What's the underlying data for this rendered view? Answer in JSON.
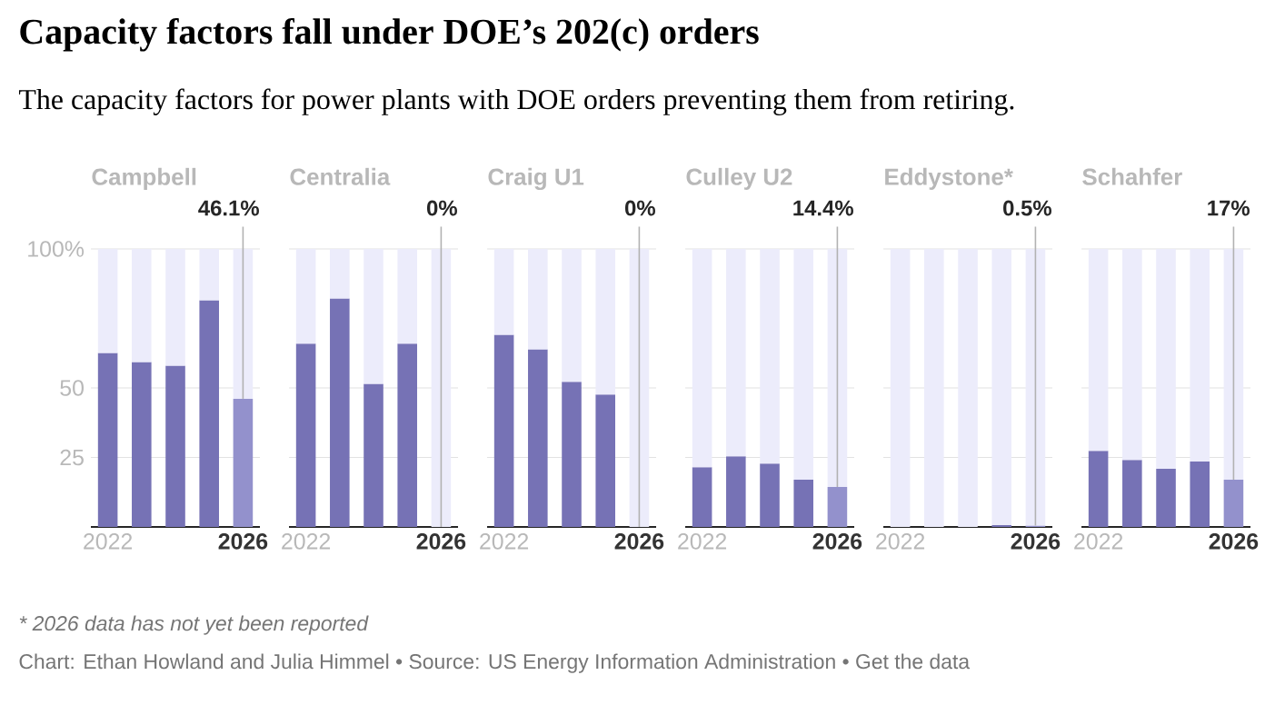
{
  "chart_data": [
    {
      "type": "other",
      "title": "Capacity factors fall under DOE’s 202(c) orders",
      "subtitle": "The capacity factors for power plants with DOE orders preventing them from retiring.",
      "annotations": [
        "* 2026 data has not yet been reported",
        "Chart: Ethan Howland and Julia Himmel • Source: US Energy Information Administration • Get the data"
      ]
    },
    {
      "type": "bar",
      "title": "Campbell",
      "categories": [
        "2022",
        null,
        null,
        null,
        "2026"
      ],
      "ylim": [
        0,
        100
      ],
      "yticks": [
        25,
        50,
        {
          "value": 100,
          "label": "100%"
        }
      ],
      "grid": "y",
      "stacked": true,
      "series": [
        {
          "colors": [
            "#7672b5",
            "#7672b5",
            "#7672b5",
            "#7672b5",
            "#9391cc"
          ],
          "values": [
            62.6,
            59.3,
            58,
            81.5,
            46.1
          ],
          "value_labels": [
            null,
            null,
            null,
            null,
            "46.1%"
          ]
        },
        {
          "color": "#ececfb",
          "values": [
            37.4,
            40.7,
            42,
            18.5,
            53.9
          ]
        }
      ]
    },
    {
      "type": "bar",
      "title": "Centralia",
      "categories": [
        "2022",
        null,
        null,
        null,
        "2026"
      ],
      "ylim": [
        0,
        100
      ],
      "yticks": [
        25,
        50,
        100
      ],
      "grid": "y",
      "tick_labels": "x",
      "stacked": true,
      "series": [
        {
          "colors": [
            "#7672b5",
            "#7672b5",
            "#7672b5",
            "#7672b5",
            "#9391cc"
          ],
          "values": [
            65.9,
            82.2,
            51.5,
            65.9,
            0
          ],
          "value_labels": [
            null,
            null,
            null,
            null,
            "0%"
          ]
        },
        {
          "color": "#ececfb",
          "values": [
            34.1,
            17.8,
            48.5,
            34.1,
            100
          ]
        }
      ]
    },
    {
      "type": "bar",
      "title": "Craig U1",
      "categories": [
        "2022",
        null,
        null,
        null,
        "2026"
      ],
      "ylim": [
        0,
        100
      ],
      "yticks": [
        25,
        50,
        100
      ],
      "grid": "y",
      "tick_labels": "x",
      "stacked": true,
      "series": [
        {
          "colors": [
            "#7672b5",
            "#7672b5",
            "#7672b5",
            "#7672b5",
            "#9391cc"
          ],
          "values": [
            69.1,
            63.9,
            52.2,
            47.6,
            0
          ],
          "value_labels": [
            null,
            null,
            null,
            null,
            "0%"
          ]
        },
        {
          "color": "#ececfb",
          "values": [
            30.9,
            36.1,
            47.8,
            52.4,
            100
          ]
        }
      ]
    },
    {
      "type": "bar",
      "title": "Culley U2",
      "categories": [
        "2022",
        null,
        null,
        null,
        "2026"
      ],
      "ylim": [
        0,
        100
      ],
      "yticks": [
        25,
        50,
        100
      ],
      "grid": "y",
      "tick_labels": "x",
      "stacked": true,
      "series": [
        {
          "colors": [
            "#7672b5",
            "#7672b5",
            "#7672b5",
            "#7672b5",
            "#9391cc"
          ],
          "values": [
            21.5,
            25.4,
            22.8,
            17,
            14.4
          ],
          "value_labels": [
            null,
            null,
            null,
            null,
            "14.4%"
          ]
        },
        {
          "color": "#ececfb",
          "values": [
            78.5,
            74.6,
            77.2,
            83,
            85.6
          ]
        }
      ]
    },
    {
      "type": "bar",
      "title": "Eddystone*",
      "categories": [
        "2022",
        null,
        null,
        null,
        "2026"
      ],
      "ylim": [
        0,
        100
      ],
      "yticks": [
        25,
        50,
        100
      ],
      "grid": "y",
      "tick_labels": "x",
      "stacked": true,
      "series": [
        {
          "colors": [
            "#7672b5",
            "#7672b5",
            "#7672b5",
            "#7672b5",
            "#9391cc"
          ],
          "values": [
            0,
            0,
            0,
            0.7,
            0.5
          ],
          "value_labels": [
            null,
            null,
            null,
            null,
            "0.5%"
          ]
        },
        {
          "color": "#ececfb",
          "values": [
            100,
            100,
            100,
            99.3,
            99.5
          ]
        }
      ]
    },
    {
      "type": "bar",
      "title": "Schahfer",
      "categories": [
        "2022",
        null,
        null,
        null,
        "2026"
      ],
      "ylim": [
        0,
        100
      ],
      "yticks": [
        25,
        50,
        100
      ],
      "grid": "y",
      "tick_labels": "x",
      "stacked": true,
      "series": [
        {
          "colors": [
            "#7672b5",
            "#7672b5",
            "#7672b5",
            "#7672b5",
            "#9391cc"
          ],
          "values": [
            27.4,
            24.1,
            20.9,
            23.5,
            17
          ],
          "value_labels": [
            null,
            null,
            null,
            null,
            "17%"
          ]
        },
        {
          "color": "#ececfb",
          "values": [
            72.6,
            75.9,
            79.1,
            76.5,
            83
          ]
        }
      ]
    }
  ]
}
